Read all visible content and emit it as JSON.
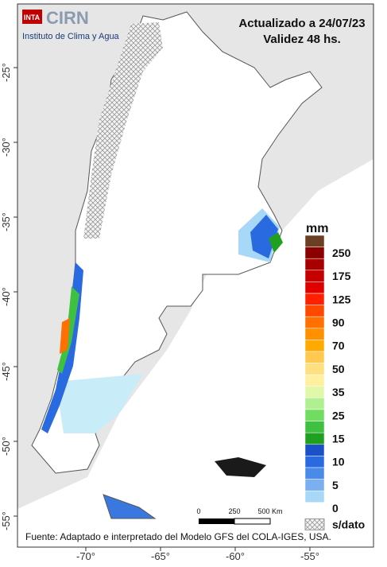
{
  "header": {
    "logo_inta": "INTA",
    "logo_cirn": "CIRN",
    "institute": "Instituto de Clima y Agua",
    "updated": "Actualizado a 24/07/23",
    "validity": "Validez 48 hs."
  },
  "map": {
    "lat_ticks": [
      {
        "value": -25,
        "label": "-25°"
      },
      {
        "value": -30,
        "label": "-30°"
      },
      {
        "value": -35,
        "label": "-35°"
      },
      {
        "value": -40,
        "label": "-40°"
      },
      {
        "value": -45,
        "label": "-45°"
      },
      {
        "value": -50,
        "label": "-50°"
      },
      {
        "value": -55,
        "label": "-55°"
      }
    ],
    "lon_ticks": [
      {
        "value": -70,
        "label": "-70°"
      },
      {
        "value": -65,
        "label": "-65°"
      },
      {
        "value": -60,
        "label": "-60°"
      },
      {
        "value": -55,
        "label": "-55°"
      }
    ]
  },
  "legend": {
    "title": "mm",
    "colors": [
      "#6b3f22",
      "#8b0000",
      "#a80000",
      "#c40000",
      "#e00000",
      "#ff2000",
      "#ff4800",
      "#ff7000",
      "#ff9000",
      "#ffaa00",
      "#ffc850",
      "#ffe080",
      "#fff0a0",
      "#e0f8a8",
      "#b0f090",
      "#70dc60",
      "#40c040",
      "#20a020",
      "#1a50c8",
      "#2a6ae0",
      "#4a8ae8",
      "#7ab0f0",
      "#a8d8f8",
      "#ffffff"
    ],
    "labels": [
      "250",
      "175",
      "125",
      "90",
      "70",
      "50",
      "35",
      "25",
      "15",
      "10",
      "5",
      "0"
    ],
    "no_data": "s/dato"
  },
  "scale_bar": {
    "labels": [
      "0",
      "250",
      "500 Km"
    ]
  },
  "footer": "Fuente: Adaptado e interpretado del Modelo GFS del COLA-IGES, USA."
}
